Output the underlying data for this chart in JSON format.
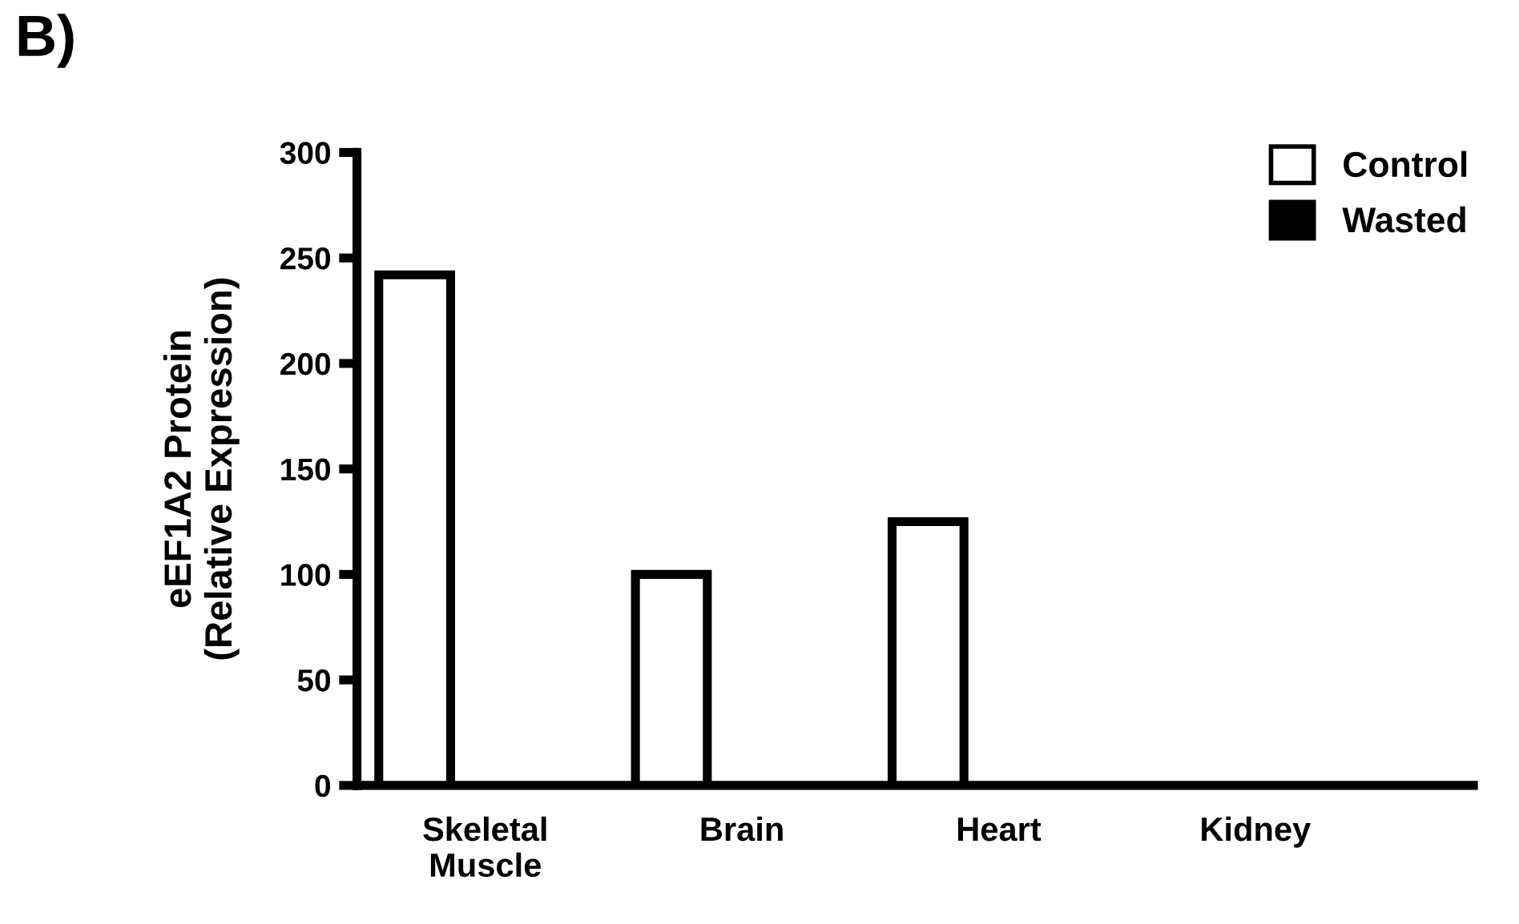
{
  "chart_data": {
    "type": "bar",
    "title": "B)",
    "ylabel": "eEF1A2 Protein\n(Relative Expression)",
    "categories": [
      "Skeletal\nMuscle",
      "Brain",
      "Heart",
      "Kidney"
    ],
    "series": [
      {
        "name": "Control",
        "color": "#ffffff",
        "values": [
          242,
          100,
          125,
          null
        ]
      },
      {
        "name": "Wasted",
        "color": "#000000",
        "values": [
          null,
          null,
          null,
          null
        ]
      }
    ],
    "ylim": [
      0,
      300
    ],
    "yticks": [
      0,
      50,
      100,
      150,
      200,
      250,
      300
    ],
    "grid": false,
    "legend": "top right"
  }
}
